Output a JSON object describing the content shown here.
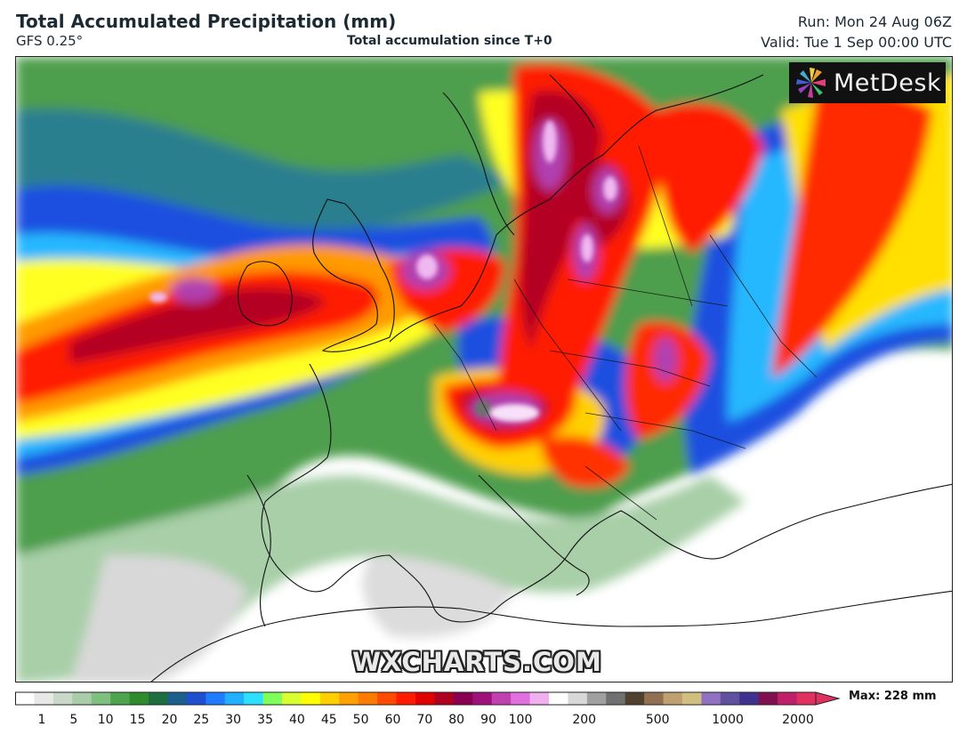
{
  "header": {
    "title": "Total Accumulated Precipitation (mm)",
    "model": "GFS 0.25°",
    "subtitle": "Total accumulation since T+0",
    "run": "Run: Mon 24 Aug 06Z",
    "valid": "Valid: Tue 1 Sep 00:00 UTC"
  },
  "logo": {
    "text": "MetDesk"
  },
  "watermark": "WXCHARTS.COM",
  "legend": {
    "ticks": [
      "1",
      "5",
      "10",
      "15",
      "20",
      "25",
      "30",
      "35",
      "40",
      "45",
      "50",
      "60",
      "70",
      "80",
      "90",
      "100",
      "200",
      "500",
      "1000",
      "2000"
    ],
    "max_label": "Max: 228 mm",
    "colors": [
      "#ffffff",
      "#e8e8e8",
      "#c9d8c9",
      "#a9cca9",
      "#7fbf7f",
      "#4fa54f",
      "#2e8b2e",
      "#1f6e3f",
      "#1b5f8c",
      "#1e4fd0",
      "#1f7bff",
      "#1fb0ff",
      "#2ee0ff",
      "#7fff5a",
      "#d8ff30",
      "#ffff00",
      "#ffd000",
      "#ffa000",
      "#ff7a00",
      "#ff4a00",
      "#ff1a00",
      "#e00000",
      "#b00020",
      "#8a0050",
      "#a0107a",
      "#c040b0",
      "#e070e0",
      "#f0b0f0",
      "#ffffff",
      "#d8d8d8",
      "#a0a0a0",
      "#707070",
      "#504030",
      "#907050",
      "#c0a070",
      "#d0c080",
      "#9070c0",
      "#6050a0",
      "#403090",
      "#801050",
      "#c0206a",
      "#e03060"
    ]
  },
  "map": {
    "colors": {
      "land_dry": "#ffffff",
      "light_grey": "#dcdcdc",
      "light_green": "#a8cfa8",
      "green": "#4e9e4e",
      "dark_green": "#2a7a3a",
      "teal": "#2a7f8f",
      "blue": "#1e50e0",
      "light_blue": "#25b8ff",
      "cyan": "#3ee6ff",
      "yellow": "#ffff20",
      "orange": "#ff9a00",
      "red": "#ff1a00",
      "dark_red": "#b40020",
      "purple": "#b040b0",
      "pink": "#f0b8f0",
      "border": "#111111"
    }
  }
}
